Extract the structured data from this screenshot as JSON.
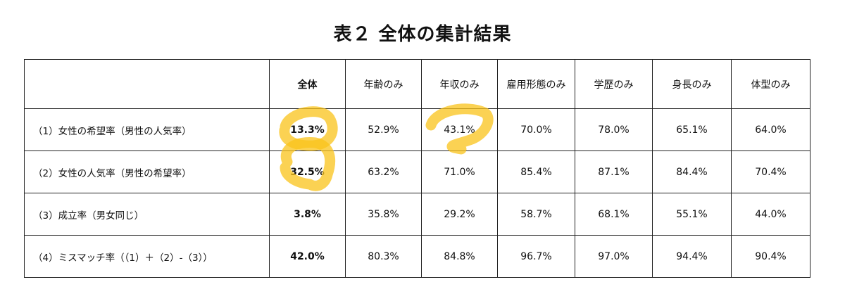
{
  "title": "表２ 全体の集計結果",
  "table": {
    "headers": [
      "",
      "全体",
      "年齢のみ",
      "年収のみ",
      "雇用形態のみ",
      "学歴のみ",
      "身長のみ",
      "体型のみ"
    ],
    "rows": [
      {
        "label": "（1）女性の希望率（男性の人気率）",
        "values": [
          "13.3%",
          "52.9%",
          "43.1%",
          "70.0%",
          "78.0%",
          "65.1%",
          "64.0%"
        ]
      },
      {
        "label": "（2）女性の人気率（男性の希望率）",
        "values": [
          "32.5%",
          "63.2%",
          "71.0%",
          "85.4%",
          "87.1%",
          "84.4%",
          "70.4%"
        ]
      },
      {
        "label": "（3）成立率（男女同じ）",
        "values": [
          "3.8%",
          "35.8%",
          "29.2%",
          "58.7%",
          "68.1%",
          "55.1%",
          "44.0%"
        ]
      },
      {
        "label": "（4）ミスマッチ率（（1）＋（2）-（3））",
        "values": [
          "42.0%",
          "80.3%",
          "84.8%",
          "96.7%",
          "97.0%",
          "94.4%",
          "90.4%"
        ]
      }
    ]
  },
  "highlight_color": "#F9C31A"
}
